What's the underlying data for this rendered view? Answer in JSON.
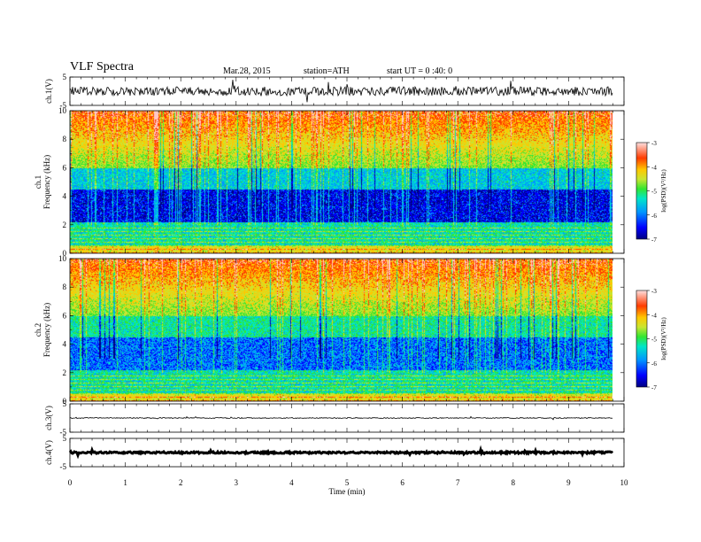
{
  "header": {
    "title": "VLF  Spectra",
    "date": "Mar.28, 2015",
    "station": "station=ATH",
    "start": "start  UT =   0 :40: 0"
  },
  "chart_data": [
    {
      "type": "line",
      "panel": "ch1-waveform",
      "ylabel": "ch.1(V)",
      "ylim": [
        -5,
        5
      ],
      "yticks": [
        "5",
        "-5"
      ],
      "xlim": [
        0,
        10
      ],
      "baseline": 0
    },
    {
      "type": "heatmap",
      "panel": "ch1-spectrogram",
      "ylabel": "ch.1\nFrequency  (kHz)",
      "ylim": [
        0,
        10
      ],
      "yticks": [
        "0",
        "2",
        "4",
        "6",
        "8",
        "10"
      ],
      "xlim": [
        0,
        9.8
      ],
      "colorbar": {
        "label": "log(PSD)(V²/Hz)",
        "range": [
          -7,
          -3
        ],
        "ticks": [
          "-3",
          "-4",
          "-5",
          "-6",
          "-7"
        ]
      }
    },
    {
      "type": "heatmap",
      "panel": "ch2-spectrogram",
      "ylabel": "ch.2\nFrequency  (kHz)",
      "ylim": [
        0,
        10
      ],
      "yticks": [
        "0",
        "2",
        "4",
        "6",
        "8",
        "10"
      ],
      "xlim": [
        0,
        9.8
      ],
      "colorbar": {
        "label": "log(PSD)(V²/Hz)",
        "range": [
          -7,
          -3
        ],
        "ticks": [
          "-3",
          "-4",
          "-5",
          "-6",
          "-7"
        ]
      }
    },
    {
      "type": "line",
      "panel": "ch3-waveform",
      "ylabel": "ch.3(V)",
      "ylim": [
        -5,
        5
      ],
      "yticks": [
        "5",
        "-5"
      ],
      "baseline": 0
    },
    {
      "type": "line",
      "panel": "ch4-waveform",
      "ylabel": "ch.4(V)",
      "ylim": [
        -5,
        5
      ],
      "yticks": [
        "5",
        "-5"
      ],
      "baseline": 0
    }
  ],
  "xaxis": {
    "label": "Time  (min)",
    "ticks": [
      "0",
      "1",
      "2",
      "3",
      "4",
      "5",
      "6",
      "7",
      "8",
      "9",
      "10"
    ],
    "range": [
      0,
      10
    ]
  },
  "colors": {
    "background": "#ffffff",
    "waveform": "#000000",
    "colormap": [
      "#000080",
      "#0000ff",
      "#0096ff",
      "#00e6c8",
      "#32e632",
      "#c8e632",
      "#ffc800",
      "#ff3c00",
      "#ffc8c8"
    ]
  }
}
